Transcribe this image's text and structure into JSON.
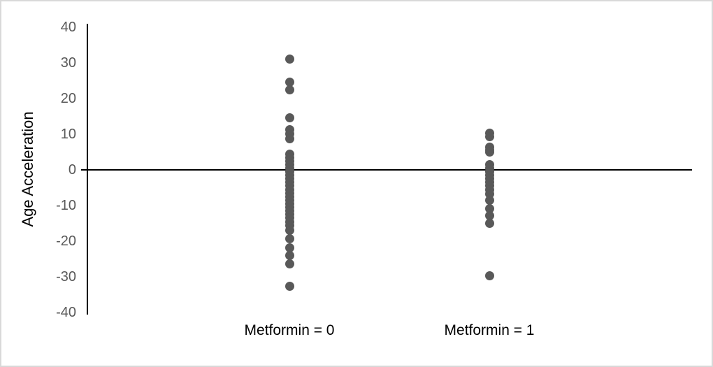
{
  "accent_colors": {
    "dot_color": "#595959",
    "axis_color": "#000000",
    "tick_label_color": "#595959",
    "category_label_color": "#000000",
    "frame_border_color": "#d9d9d9",
    "background": "#ffffff"
  },
  "chart_data": {
    "type": "scatter",
    "title": "",
    "xlabel": "",
    "ylabel": "Age Acceleration",
    "ylim": [
      -40,
      40
    ],
    "yticks": [
      40,
      30,
      20,
      10,
      0,
      -10,
      -20,
      -30,
      -40
    ],
    "grid": false,
    "legend": false,
    "categories": [
      "Metformin = 0",
      "Metformin = 1"
    ],
    "series": [
      {
        "name": "Metformin = 0",
        "values": [
          31,
          24.5,
          22.5,
          14.5,
          11.3,
          10,
          8.7,
          4.5,
          3.5,
          2.5,
          1.5,
          0.5,
          -0.5,
          -1.5,
          -2.5,
          -3.5,
          -4.5,
          -5.5,
          -6.5,
          -7.5,
          -8.5,
          -9.5,
          -10.5,
          -11.5,
          -12.5,
          -13.5,
          -14.5,
          -15.5,
          -16.9,
          -19.2,
          -21.8,
          -23.9,
          -26.4,
          -32.5
        ]
      },
      {
        "name": "Metformin = 1",
        "values": [
          10.3,
          9.3,
          6.4,
          5.6,
          5.0,
          1.5,
          0.5,
          -0.5,
          -1.5,
          -2.5,
          -3.5,
          -4.5,
          -5.5,
          -6.7,
          -8.6,
          -10.8,
          -12.9,
          -14.9,
          -29.6
        ]
      }
    ]
  }
}
